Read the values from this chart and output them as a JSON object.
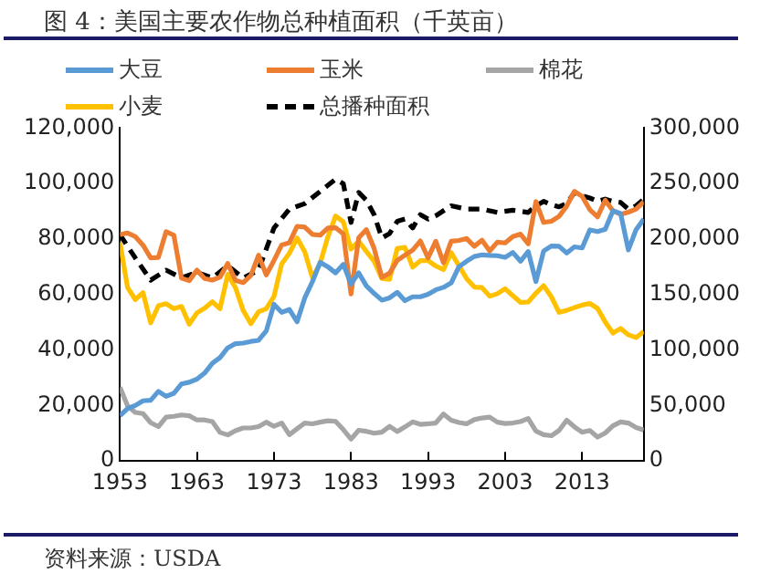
{
  "chart_data": {
    "type": "line",
    "title": "图 4：美国主要农作物总种植面积（千英亩）",
    "x": [
      1953,
      1954,
      1955,
      1956,
      1957,
      1958,
      1959,
      1960,
      1961,
      1962,
      1963,
      1964,
      1965,
      1966,
      1967,
      1968,
      1969,
      1970,
      1971,
      1972,
      1973,
      1974,
      1975,
      1976,
      1977,
      1978,
      1979,
      1980,
      1981,
      1982,
      1983,
      1984,
      1985,
      1986,
      1987,
      1988,
      1989,
      1990,
      1991,
      1992,
      1993,
      1994,
      1995,
      1996,
      1997,
      1998,
      1999,
      2000,
      2001,
      2002,
      2003,
      2004,
      2005,
      2006,
      2007,
      2008,
      2009,
      2010,
      2011,
      2012,
      2013,
      2014,
      2015,
      2016,
      2017,
      2018,
      2019,
      2020,
      2021
    ],
    "series": [
      {
        "name": "大豆",
        "color": "#5b9bd5",
        "values": [
          16300,
          18900,
          20000,
          21700,
          21900,
          25100,
          23300,
          24400,
          27800,
          28400,
          29500,
          31700,
          35200,
          37300,
          40800,
          42300,
          42500,
          43100,
          43500,
          46900,
          56500,
          53600,
          54600,
          50200,
          58800,
          64700,
          71600,
          70000,
          67800,
          70900,
          63800,
          67800,
          63100,
          60400,
          58000,
          58800,
          60800,
          57800,
          59200,
          59200,
          60100,
          61700,
          62600,
          64200,
          70000,
          72000,
          73700,
          74300,
          74100,
          74000,
          73400,
          75200,
          72000,
          75500,
          64700,
          75700,
          77500,
          77400,
          75000,
          77200,
          76800,
          83300,
          82700,
          83500,
          90200,
          89200,
          76100,
          83400,
          87200
        ]
      },
      {
        "name": "玉米",
        "color": "#ed7d31",
        "values": [
          81600,
          82200,
          80900,
          77800,
          73200,
          73400,
          82700,
          81400,
          65900,
          65000,
          68800,
          65800,
          65200,
          66300,
          71200,
          65100,
          64300,
          66900,
          74200,
          67100,
          72300,
          77900,
          78700,
          84600,
          84300,
          81700,
          81400,
          84000,
          84100,
          81900,
          60200,
          80500,
          83400,
          76600,
          66200,
          67700,
          72300,
          74200,
          76000,
          79300,
          73200,
          79200,
          71500,
          79200,
          79500,
          80200,
          77400,
          79600,
          75700,
          78900,
          78600,
          80900,
          81800,
          78300,
          93500,
          86000,
          86400,
          88200,
          91900,
          97200,
          95400,
          90600,
          88000,
          94000,
          90200,
          88900,
          89700,
          90800,
          93400
        ]
      },
      {
        "name": "棉花",
        "color": "#a5a5a5",
        "values": [
          26600,
          19900,
          17500,
          17100,
          13800,
          12400,
          15800,
          16100,
          16600,
          16300,
          14800,
          14800,
          14200,
          10300,
          9400,
          10900,
          11900,
          11900,
          12400,
          14000,
          12500,
          13700,
          9500,
          11600,
          13700,
          13400,
          14000,
          14500,
          14300,
          11300,
          7900,
          11100,
          10700,
          10000,
          10400,
          12500,
          10600,
          12300,
          14100,
          13200,
          13400,
          13700,
          16900,
          14700,
          13900,
          13400,
          14900,
          15500,
          15800,
          14000,
          13500,
          13700,
          14200,
          15300,
          10800,
          9500,
          9100,
          11000,
          14700,
          12300,
          10400,
          11000,
          8600,
          10100,
          12700,
          14100,
          13700,
          12100,
          11200
        ]
      },
      {
        "name": "小麦",
        "color": "#ffc000",
        "values": [
          78900,
          62500,
          58200,
          60700,
          49800,
          56000,
          56700,
          54900,
          55700,
          49300,
          53400,
          55100,
          57400,
          54900,
          67300,
          62500,
          54300,
          49500,
          53800,
          54900,
          59300,
          71000,
          74900,
          80400,
          75400,
          66000,
          71400,
          80800,
          88300,
          86200,
          76400,
          79200,
          75500,
          72000,
          65800,
          65500,
          76600,
          77000,
          69900,
          72200,
          72200,
          70300,
          69000,
          75100,
          70400,
          65800,
          62700,
          62500,
          59400,
          60300,
          62100,
          59600,
          57200,
          57300,
          60500,
          63200,
          59200,
          53600,
          54300,
          55300,
          56200,
          56800,
          55000,
          50100,
          46100,
          47800,
          45500,
          44500,
          46700
        ]
      },
      {
        "name": "总播种面积",
        "color": "#000000",
        "axis": "y2",
        "line_style": "dashed",
        "x": [
          1953,
          1955,
          1957,
          1959,
          1961,
          1963,
          1965,
          1967,
          1969,
          1971,
          1973,
          1975,
          1977,
          1979,
          1981,
          1982,
          1983,
          1984,
          1985,
          1986,
          1987,
          1988,
          1989,
          1990,
          1991,
          1992,
          1993,
          1994,
          1996,
          1998,
          2000,
          2002,
          2004,
          2006,
          2007,
          2008,
          2009,
          2010,
          2011,
          2012,
          2013,
          2014,
          2015,
          2016,
          2017,
          2018,
          2019,
          2020,
          2021
        ],
        "values": [
          204000,
          183000,
          163000,
          172000,
          165000,
          170000,
          165000,
          176000,
          165000,
          172000,
          210000,
          227000,
          232000,
          243000,
          254000,
          250000,
          215000,
          242000,
          235000,
          222000,
          201000,
          205000,
          216000,
          218000,
          210000,
          222000,
          218000,
          221000,
          230000,
          227000,
          227000,
          224000,
          226000,
          224000,
          230000,
          234000,
          231000,
          229000,
          232000,
          242000,
          239000,
          237000,
          234000,
          236000,
          234000,
          233000,
          227000,
          230000,
          236000
        ]
      }
    ],
    "xlim": [
      1953,
      2021
    ],
    "xticks": [
      1953,
      1963,
      1973,
      1983,
      1993,
      2003,
      2013
    ],
    "ylim": [
      0,
      120000
    ],
    "yticks": [
      {
        "value": 0,
        "label": "0"
      },
      {
        "value": 20000,
        "label": "20,000"
      },
      {
        "value": 40000,
        "label": "40,000"
      },
      {
        "value": 60000,
        "label": "60,000"
      },
      {
        "value": 80000,
        "label": "80,000"
      },
      {
        "value": 100000,
        "label": "100,000"
      },
      {
        "value": 120000,
        "label": "120,000"
      }
    ],
    "y2lim": [
      0,
      300000
    ],
    "y2ticks": [
      {
        "value": 0,
        "label": "0"
      },
      {
        "value": 50000,
        "label": "50,000"
      },
      {
        "value": 100000,
        "label": "100,000"
      },
      {
        "value": 150000,
        "label": "150,000"
      },
      {
        "value": 200000,
        "label": "200,000"
      },
      {
        "value": 250000,
        "label": "250,000"
      },
      {
        "value": 300000,
        "label": "300,000"
      }
    ],
    "grid": false,
    "legend": "top",
    "marker": "none",
    "line_style": "solid",
    "annotations": [
      "资料来源：USDA"
    ]
  }
}
